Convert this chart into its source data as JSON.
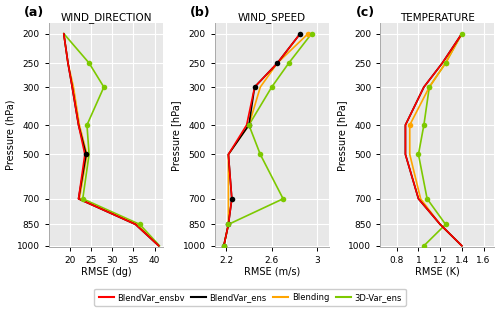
{
  "pressure_levels": [
    200,
    250,
    300,
    400,
    500,
    700,
    850,
    1000
  ],
  "wind_dir": {
    "BlendVar_ensbv": [
      18.5,
      19.5,
      20.5,
      22.0,
      23.5,
      22.0,
      35.5,
      41.0
    ],
    "BlendVar_ens": [
      18.5,
      19.5,
      20.5,
      22.0,
      23.8,
      22.0,
      35.5,
      41.0
    ],
    "Blending": [
      18.5,
      19.5,
      20.8,
      22.2,
      24.0,
      22.2,
      35.8,
      41.0
    ],
    "3D-Var_ens": [
      18.5,
      24.5,
      28.0,
      24.0,
      24.5,
      23.0,
      36.5,
      41.2
    ],
    "sig_BlendVar_ens": [
      500
    ],
    "sig_Blending": [],
    "sig_3D-Var_ens": [
      250,
      300,
      400,
      700,
      850
    ]
  },
  "wind_speed": {
    "BlendVar_ensbv": [
      2.85,
      2.65,
      2.45,
      2.38,
      2.22,
      2.25,
      2.22,
      2.18
    ],
    "BlendVar_ens": [
      2.85,
      2.65,
      2.45,
      2.4,
      2.22,
      2.25,
      2.22,
      2.18
    ],
    "Blending": [
      2.92,
      2.65,
      2.5,
      2.4,
      2.22,
      2.22,
      2.22,
      2.18
    ],
    "3D-Var_ens": [
      2.95,
      2.75,
      2.6,
      2.4,
      2.5,
      2.7,
      2.22,
      2.18
    ],
    "sig_BlendVar_ens": [
      200,
      250,
      300,
      400,
      700,
      850,
      1000
    ],
    "sig_Blending": [
      200
    ],
    "sig_3D-Var_ens": [
      200,
      250,
      300,
      400,
      500,
      700,
      850,
      1000
    ]
  },
  "temperature": {
    "BlendVar_ensbv": [
      1.4,
      1.22,
      1.05,
      0.88,
      0.88,
      1.0,
      1.2,
      1.4
    ],
    "BlendVar_ens": [
      1.4,
      1.22,
      1.05,
      0.88,
      0.88,
      1.0,
      1.2,
      1.4
    ],
    "Blending": [
      1.4,
      1.25,
      1.1,
      0.92,
      0.92,
      1.02,
      1.2,
      1.4
    ],
    "3D-Var_ens": [
      1.4,
      1.25,
      1.1,
      1.05,
      1.0,
      1.08,
      1.25,
      1.05
    ],
    "sig_BlendVar_ens": [],
    "sig_Blending": [
      250,
      300,
      400
    ],
    "sig_3D-Var_ens": [
      200,
      250,
      300,
      400,
      500,
      700,
      850,
      1000
    ]
  },
  "colors": {
    "BlendVar_ensbv": "#ff0000",
    "BlendVar_ens": "#000000",
    "Blending": "#ffa500",
    "3D-Var_ens": "#7dc900"
  },
  "titles": [
    "WIND_DIRECTION",
    "WIND_SPEED",
    "TEMPERATURE"
  ],
  "xlabels": [
    "RMSE (dg)",
    "RMSE (m/s)",
    "RMSE (K)"
  ],
  "xlims": {
    "wind_dir": [
      15.0,
      42.0
    ],
    "wind_speed": [
      2.1,
      3.1
    ],
    "temperature": [
      0.65,
      1.7
    ]
  },
  "xticks": {
    "wind_dir": [
      20,
      25,
      30,
      35,
      40
    ],
    "wind_speed": [
      2.2,
      2.6,
      3.0
    ],
    "temperature": [
      0.8,
      1.0,
      1.2,
      1.4,
      1.6
    ]
  },
  "yticks": [
    200,
    250,
    300,
    400,
    500,
    700,
    850,
    1000
  ],
  "ylim": [
    1010,
    185
  ],
  "panel_labels": [
    "(a)",
    "(b)",
    "(c)"
  ],
  "ylabels": [
    "Pressure (hPa)",
    "Pressure [hPa]",
    "Pressure [hPa]"
  ],
  "legend_labels": [
    "BlendVar_ensbv",
    "BlendVar_ens",
    "Blending",
    "3D-Var_ens"
  ],
  "bg_color": "#e8e8e8",
  "grid_color": "#ffffff"
}
